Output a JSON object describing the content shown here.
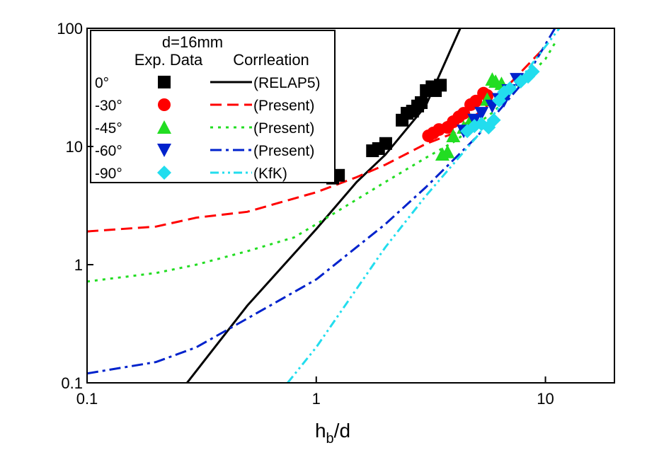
{
  "chart_data": {
    "type": "scatter",
    "x_label": {
      "text": "h",
      "subscript": "b",
      "suffix": "/d"
    },
    "legend_title": "d=16mm",
    "legend_headers": [
      "Exp. Data",
      "Corrleation"
    ],
    "xlog": true,
    "ylog": true,
    "xlim": [
      0.1,
      20
    ],
    "ylim": [
      0.1,
      100
    ],
    "xticks": [
      0.1,
      1,
      10
    ],
    "yticks": [
      0.1,
      1,
      10,
      100
    ],
    "series": [
      {
        "name": "0°",
        "color": "#000000",
        "marker": "square",
        "x": [
          1.18,
          1.25,
          1.76,
          1.87,
          2.01,
          2.37,
          2.49,
          2.63,
          2.77,
          2.87,
          3.02,
          3.2,
          3.31,
          3.48
        ],
        "values": [
          5.4,
          5.7,
          9.2,
          9.6,
          10.6,
          16.7,
          19.1,
          19.9,
          22,
          23.5,
          29.7,
          32,
          29.7,
          33
        ]
      },
      {
        "name": "-30°",
        "color": "#ff0000",
        "marker": "circle",
        "x": [
          3.09,
          3.24,
          3.43,
          3.74,
          3.96,
          4.19,
          4.4,
          4.72,
          4.97,
          5.37,
          5.57
        ],
        "values": [
          12.3,
          13,
          13.9,
          14.5,
          16.2,
          17.8,
          19.1,
          22.6,
          24.2,
          28.2,
          27
        ]
      },
      {
        "name": "-45°",
        "color": "#22dd22",
        "marker": "triangle-up",
        "x": [
          3.55,
          3.74,
          3.96,
          4.4,
          4.72,
          5.57,
          5.86,
          6.06,
          6.43
        ],
        "values": [
          8.6,
          9,
          12.3,
          14.5,
          16.7,
          25,
          37,
          35.5,
          34
        ]
      },
      {
        "name": "-60°",
        "color": "#0022cc",
        "marker": "triangle-down",
        "x": [
          4.4,
          4.9,
          5.26,
          5.86,
          6.28,
          6.6,
          6.9,
          7.5
        ],
        "values": [
          13.5,
          16.7,
          19.1,
          22,
          25,
          24.5,
          29.7,
          37
        ]
      },
      {
        "name": "-90°",
        "color": "#22ddee",
        "marker": "diamond",
        "x": [
          4.56,
          4.9,
          5.26,
          5.65,
          5.95,
          6.28,
          6.6,
          7,
          7.8,
          8.4,
          8.8
        ],
        "values": [
          13.5,
          14.9,
          15.5,
          14.5,
          16.7,
          24.5,
          28.8,
          31,
          35.5,
          39,
          43
        ]
      }
    ],
    "fits": [
      {
        "name": "(RELAP5)",
        "color": "#000000",
        "dash": "solid",
        "x": [
          0.273,
          0.5,
          1,
          1.5,
          2,
          3,
          4.25
        ],
        "values": [
          0.1,
          0.45,
          2,
          5,
          8.5,
          22,
          100
        ]
      },
      {
        "name": "(Present)",
        "color": "#ff0000",
        "dash": "dash",
        "x": [
          0.1,
          0.2,
          0.3,
          0.5,
          1,
          1.5,
          2,
          3,
          4,
          6,
          10
        ],
        "values": [
          1.91,
          2.1,
          2.5,
          2.8,
          4.1,
          5.5,
          7,
          10.5,
          13,
          25,
          70
        ]
      },
      {
        "name": "(Present)",
        "color": "#22dd22",
        "dash": "dot",
        "x": [
          0.1,
          0.2,
          0.3,
          0.5,
          0.8,
          1,
          2,
          3,
          4,
          6,
          10,
          11
        ],
        "values": [
          0.72,
          0.85,
          1,
          1.3,
          1.7,
          2.2,
          5,
          8,
          11,
          20,
          55,
          75
        ]
      },
      {
        "name": "(Present)",
        "color": "#0022cc",
        "dash": "dashdot",
        "x": [
          0.1,
          0.2,
          0.3,
          0.5,
          1,
          2,
          3,
          5,
          8,
          11
        ],
        "values": [
          0.12,
          0.15,
          0.2,
          0.35,
          0.75,
          2.2,
          4.5,
          12,
          35,
          100
        ]
      },
      {
        "name": "(KfK)",
        "color": "#22ddee",
        "dash": "dashdotdot",
        "x": [
          0.75,
          1,
          2,
          3,
          5,
          8,
          11.5
        ],
        "values": [
          0.1,
          0.2,
          1.4,
          3.8,
          12,
          40,
          100
        ]
      }
    ]
  }
}
